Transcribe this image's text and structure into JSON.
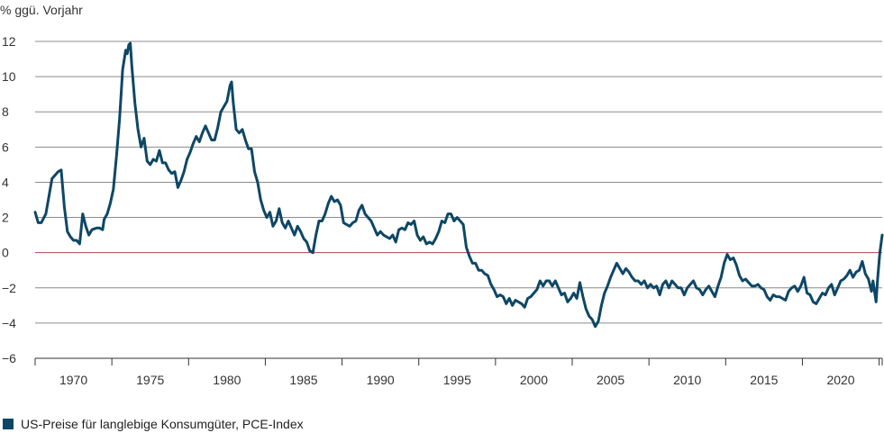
{
  "chart_data": {
    "type": "line",
    "ylabel": "% ggü. Vorjahr",
    "ylim": [
      -6,
      12
    ],
    "yticks": [
      12,
      10,
      8,
      6,
      4,
      2,
      0,
      -2,
      -4,
      -6
    ],
    "ytick_labels": [
      "12",
      "10",
      "8",
      "6",
      "4",
      "2",
      "0",
      "−2",
      "−4",
      "−6"
    ],
    "xlim": [
      1967.5,
      2022.7
    ],
    "xticks": [
      1970,
      1975,
      1980,
      1985,
      1990,
      1995,
      2000,
      2005,
      2010,
      2015,
      2020
    ],
    "xtick_labels": [
      "1970",
      "1975",
      "1980",
      "1985",
      "1990",
      "1995",
      "2000",
      "2005",
      "2010",
      "2015",
      "2020"
    ],
    "grid": true,
    "zero_line_color": "#b2424c",
    "series": [
      {
        "name": "US-Preise für langlebige Konsumgüter, PCE-Index",
        "color": "#0e4766",
        "points": [
          [
            1967.5,
            2.3
          ],
          [
            1967.7,
            1.7
          ],
          [
            1967.9,
            1.7
          ],
          [
            1968.2,
            2.2
          ],
          [
            1968.4,
            3.2
          ],
          [
            1968.6,
            4.2
          ],
          [
            1968.8,
            4.4
          ],
          [
            1969.0,
            4.6
          ],
          [
            1969.2,
            4.7
          ],
          [
            1969.4,
            2.6
          ],
          [
            1969.6,
            1.2
          ],
          [
            1969.8,
            0.9
          ],
          [
            1970.0,
            0.7
          ],
          [
            1970.2,
            0.7
          ],
          [
            1970.4,
            0.5
          ],
          [
            1970.6,
            2.2
          ],
          [
            1970.8,
            1.5
          ],
          [
            1971.0,
            1.0
          ],
          [
            1971.2,
            1.3
          ],
          [
            1971.5,
            1.4
          ],
          [
            1971.7,
            1.4
          ],
          [
            1971.9,
            1.3
          ],
          [
            1972.0,
            1.9
          ],
          [
            1972.2,
            2.2
          ],
          [
            1972.4,
            2.8
          ],
          [
            1972.6,
            3.6
          ],
          [
            1972.8,
            5.5
          ],
          [
            1973.0,
            7.6
          ],
          [
            1973.2,
            10.4
          ],
          [
            1973.4,
            11.5
          ],
          [
            1973.5,
            11.3
          ],
          [
            1973.6,
            11.8
          ],
          [
            1973.7,
            11.9
          ],
          [
            1973.8,
            10.6
          ],
          [
            1974.0,
            8.5
          ],
          [
            1974.2,
            7.0
          ],
          [
            1974.4,
            6.0
          ],
          [
            1974.6,
            6.5
          ],
          [
            1974.8,
            5.2
          ],
          [
            1975.0,
            5.0
          ],
          [
            1975.2,
            5.3
          ],
          [
            1975.4,
            5.2
          ],
          [
            1975.6,
            5.8
          ],
          [
            1975.8,
            5.1
          ],
          [
            1976.0,
            5.1
          ],
          [
            1976.2,
            4.7
          ],
          [
            1976.4,
            4.5
          ],
          [
            1976.6,
            4.6
          ],
          [
            1976.8,
            3.7
          ],
          [
            1977.0,
            4.1
          ],
          [
            1977.2,
            4.6
          ],
          [
            1977.4,
            5.3
          ],
          [
            1977.6,
            5.7
          ],
          [
            1977.8,
            6.2
          ],
          [
            1978.0,
            6.6
          ],
          [
            1978.2,
            6.3
          ],
          [
            1978.4,
            6.8
          ],
          [
            1978.6,
            7.2
          ],
          [
            1978.8,
            6.8
          ],
          [
            1979.0,
            6.4
          ],
          [
            1979.2,
            6.4
          ],
          [
            1979.4,
            7.1
          ],
          [
            1979.6,
            8.0
          ],
          [
            1979.8,
            8.3
          ],
          [
            1980.0,
            8.6
          ],
          [
            1980.2,
            9.5
          ],
          [
            1980.3,
            9.7
          ],
          [
            1980.4,
            8.6
          ],
          [
            1980.6,
            7.0
          ],
          [
            1980.8,
            6.8
          ],
          [
            1981.0,
            7.0
          ],
          [
            1981.2,
            6.4
          ],
          [
            1981.4,
            5.9
          ],
          [
            1981.6,
            5.9
          ],
          [
            1981.8,
            4.6
          ],
          [
            1982.0,
            4.0
          ],
          [
            1982.2,
            3.0
          ],
          [
            1982.4,
            2.4
          ],
          [
            1982.6,
            2.0
          ],
          [
            1982.8,
            2.3
          ],
          [
            1983.0,
            1.5
          ],
          [
            1983.2,
            1.8
          ],
          [
            1983.4,
            2.5
          ],
          [
            1983.6,
            1.7
          ],
          [
            1983.8,
            1.4
          ],
          [
            1984.0,
            1.8
          ],
          [
            1984.2,
            1.4
          ],
          [
            1984.4,
            1.0
          ],
          [
            1984.6,
            1.5
          ],
          [
            1984.8,
            1.2
          ],
          [
            1985.0,
            0.8
          ],
          [
            1985.2,
            0.6
          ],
          [
            1985.4,
            0.1
          ],
          [
            1985.6,
            0.0
          ],
          [
            1985.8,
            1.0
          ],
          [
            1986.0,
            1.8
          ],
          [
            1986.2,
            1.8
          ],
          [
            1986.4,
            2.2
          ],
          [
            1986.6,
            2.8
          ],
          [
            1986.8,
            3.2
          ],
          [
            1987.0,
            2.9
          ],
          [
            1987.2,
            3.0
          ],
          [
            1987.4,
            2.7
          ],
          [
            1987.6,
            1.7
          ],
          [
            1987.8,
            1.6
          ],
          [
            1988.0,
            1.5
          ],
          [
            1988.2,
            1.7
          ],
          [
            1988.4,
            1.8
          ],
          [
            1988.6,
            2.4
          ],
          [
            1988.8,
            2.7
          ],
          [
            1989.0,
            2.2
          ],
          [
            1989.2,
            2.0
          ],
          [
            1989.4,
            1.8
          ],
          [
            1989.6,
            1.4
          ],
          [
            1989.8,
            1.0
          ],
          [
            1990.0,
            1.2
          ],
          [
            1990.2,
            1.0
          ],
          [
            1990.4,
            0.9
          ],
          [
            1990.6,
            0.8
          ],
          [
            1990.8,
            1.0
          ],
          [
            1991.0,
            0.6
          ],
          [
            1991.2,
            1.3
          ],
          [
            1991.4,
            1.4
          ],
          [
            1991.6,
            1.3
          ],
          [
            1991.8,
            1.7
          ],
          [
            1992.0,
            1.6
          ],
          [
            1992.2,
            1.8
          ],
          [
            1992.4,
            1.0
          ],
          [
            1992.6,
            0.7
          ],
          [
            1992.8,
            0.9
          ],
          [
            1993.0,
            0.5
          ],
          [
            1993.2,
            0.6
          ],
          [
            1993.4,
            0.5
          ],
          [
            1993.6,
            0.8
          ],
          [
            1993.8,
            1.2
          ],
          [
            1994.0,
            1.8
          ],
          [
            1994.2,
            1.7
          ],
          [
            1994.4,
            2.2
          ],
          [
            1994.6,
            2.2
          ],
          [
            1994.8,
            1.8
          ],
          [
            1995.0,
            2.0
          ],
          [
            1995.2,
            1.8
          ],
          [
            1995.4,
            1.6
          ],
          [
            1995.6,
            0.3
          ],
          [
            1995.8,
            -0.2
          ],
          [
            1996.0,
            -0.6
          ],
          [
            1996.2,
            -0.6
          ],
          [
            1996.4,
            -1.0
          ],
          [
            1996.6,
            -1.0
          ],
          [
            1996.8,
            -1.2
          ],
          [
            1997.0,
            -1.3
          ],
          [
            1997.2,
            -1.8
          ],
          [
            1997.4,
            -2.1
          ],
          [
            1997.6,
            -2.5
          ],
          [
            1997.8,
            -2.4
          ],
          [
            1998.0,
            -2.5
          ],
          [
            1998.2,
            -2.9
          ],
          [
            1998.4,
            -2.6
          ],
          [
            1998.6,
            -3.0
          ],
          [
            1998.8,
            -2.7
          ],
          [
            1999.0,
            -2.8
          ],
          [
            1999.2,
            -2.9
          ],
          [
            1999.4,
            -3.1
          ],
          [
            1999.6,
            -2.6
          ],
          [
            1999.8,
            -2.5
          ],
          [
            2000.0,
            -2.3
          ],
          [
            2000.2,
            -2.1
          ],
          [
            2000.4,
            -1.6
          ],
          [
            2000.6,
            -1.9
          ],
          [
            2000.8,
            -1.6
          ],
          [
            2001.0,
            -1.6
          ],
          [
            2001.2,
            -1.9
          ],
          [
            2001.4,
            -1.6
          ],
          [
            2001.6,
            -2.0
          ],
          [
            2001.8,
            -2.4
          ],
          [
            2002.0,
            -2.3
          ],
          [
            2002.2,
            -2.8
          ],
          [
            2002.4,
            -2.6
          ],
          [
            2002.6,
            -2.3
          ],
          [
            2002.8,
            -2.6
          ],
          [
            2003.0,
            -1.7
          ],
          [
            2003.2,
            -2.5
          ],
          [
            2003.4,
            -3.2
          ],
          [
            2003.6,
            -3.6
          ],
          [
            2003.8,
            -3.8
          ],
          [
            2004.0,
            -4.2
          ],
          [
            2004.2,
            -3.9
          ],
          [
            2004.4,
            -3.0
          ],
          [
            2004.6,
            -2.3
          ],
          [
            2004.8,
            -1.9
          ],
          [
            2005.0,
            -1.4
          ],
          [
            2005.2,
            -1.0
          ],
          [
            2005.4,
            -0.6
          ],
          [
            2005.6,
            -0.9
          ],
          [
            2005.8,
            -1.2
          ],
          [
            2006.0,
            -0.9
          ],
          [
            2006.2,
            -1.1
          ],
          [
            2006.4,
            -1.4
          ],
          [
            2006.6,
            -1.6
          ],
          [
            2006.8,
            -1.6
          ],
          [
            2007.0,
            -1.8
          ],
          [
            2007.2,
            -1.6
          ],
          [
            2007.4,
            -2.0
          ],
          [
            2007.6,
            -1.8
          ],
          [
            2007.8,
            -2.0
          ],
          [
            2008.0,
            -1.9
          ],
          [
            2008.2,
            -2.4
          ],
          [
            2008.4,
            -1.8
          ],
          [
            2008.6,
            -1.6
          ],
          [
            2008.8,
            -2.0
          ],
          [
            2009.0,
            -1.6
          ],
          [
            2009.2,
            -1.8
          ],
          [
            2009.4,
            -2.0
          ],
          [
            2009.6,
            -2.0
          ],
          [
            2009.8,
            -2.4
          ],
          [
            2010.0,
            -2.0
          ],
          [
            2010.2,
            -1.8
          ],
          [
            2010.4,
            -1.6
          ],
          [
            2010.6,
            -2.0
          ],
          [
            2010.8,
            -2.1
          ],
          [
            2011.0,
            -2.4
          ],
          [
            2011.2,
            -2.1
          ],
          [
            2011.4,
            -1.9
          ],
          [
            2011.6,
            -2.2
          ],
          [
            2011.8,
            -2.5
          ],
          [
            2012.0,
            -1.9
          ],
          [
            2012.2,
            -1.4
          ],
          [
            2012.4,
            -0.6
          ],
          [
            2012.6,
            -0.1
          ],
          [
            2012.8,
            -0.4
          ],
          [
            2013.0,
            -0.3
          ],
          [
            2013.2,
            -0.7
          ],
          [
            2013.4,
            -1.3
          ],
          [
            2013.6,
            -1.6
          ],
          [
            2013.8,
            -1.5
          ],
          [
            2014.0,
            -1.7
          ],
          [
            2014.2,
            -1.9
          ],
          [
            2014.4,
            -1.9
          ],
          [
            2014.6,
            -1.8
          ],
          [
            2014.8,
            -2.0
          ],
          [
            2015.0,
            -2.1
          ],
          [
            2015.2,
            -2.5
          ],
          [
            2015.4,
            -2.7
          ],
          [
            2015.6,
            -2.4
          ],
          [
            2015.8,
            -2.5
          ],
          [
            2016.0,
            -2.5
          ],
          [
            2016.2,
            -2.6
          ],
          [
            2016.4,
            -2.7
          ],
          [
            2016.6,
            -2.2
          ],
          [
            2016.8,
            -2.0
          ],
          [
            2017.0,
            -1.9
          ],
          [
            2017.2,
            -2.2
          ],
          [
            2017.4,
            -1.9
          ],
          [
            2017.6,
            -1.4
          ],
          [
            2017.8,
            -2.3
          ],
          [
            2018.0,
            -2.4
          ],
          [
            2018.2,
            -2.8
          ],
          [
            2018.4,
            -2.9
          ],
          [
            2018.6,
            -2.6
          ],
          [
            2018.8,
            -2.3
          ],
          [
            2019.0,
            -2.4
          ],
          [
            2019.2,
            -2.0
          ],
          [
            2019.4,
            -1.8
          ],
          [
            2019.6,
            -2.4
          ],
          [
            2019.8,
            -2.0
          ],
          [
            2020.0,
            -1.6
          ],
          [
            2020.2,
            -1.5
          ],
          [
            2020.4,
            -1.3
          ],
          [
            2020.6,
            -1.0
          ],
          [
            2020.8,
            -1.4
          ],
          [
            2021.0,
            -1.1
          ],
          [
            2021.2,
            -1.0
          ],
          [
            2021.4,
            -0.5
          ],
          [
            2021.6,
            -1.2
          ],
          [
            2021.8,
            -1.5
          ],
          [
            2022.0,
            -2.2
          ],
          [
            2022.1,
            -1.6
          ],
          [
            2022.3,
            -2.8
          ],
          [
            2022.4,
            -1.5
          ],
          [
            2022.55,
            0.0
          ],
          [
            2022.7,
            1.0
          ]
        ]
      }
    ]
  },
  "legend": {
    "label": "US-Preise für langlebige Konsumgüter, PCE-Index",
    "color": "#0e4766"
  }
}
